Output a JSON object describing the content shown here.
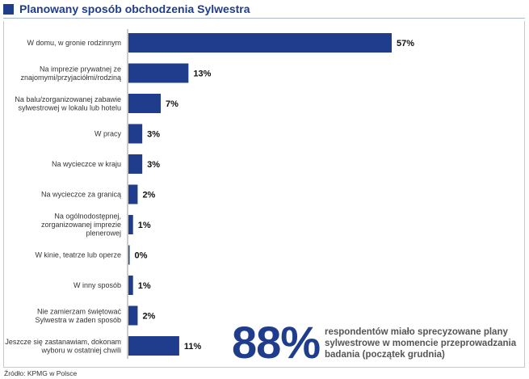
{
  "title": "Planowany sposób obchodzenia Sylwestra",
  "colors": {
    "bar": "#1f3d8c",
    "title": "#1f3d8c",
    "accent_text": "#555555"
  },
  "highlight": {
    "value": "88%",
    "text": "respondentów miało sprecyzowane plany sylwestrowe w momencie przeprowadzania badania (początek grudnia)"
  },
  "source": "Źródło: KPMG w Polsce",
  "chart_data": {
    "type": "bar",
    "orientation": "horizontal",
    "title": "Planowany sposób obchodzenia Sylwestra",
    "categories": [
      [
        "W domu, w gronie rodzinnym"
      ],
      [
        "Na imprezie prywatnej ze",
        "znajomymi/przyjaciółmi/rodziną"
      ],
      [
        "Na balu/zorganizowanej zabawie",
        "sylwestrowej w lokalu lub hotelu"
      ],
      [
        "W pracy"
      ],
      [
        "Na wycieczce w kraju"
      ],
      [
        "Na wycieczce za granicą"
      ],
      [
        "Na ogólnodostępnej,",
        "zorganizowanej imprezie",
        "plenerowej"
      ],
      [
        "W kinie, teatrze lub operze"
      ],
      [
        "W inny sposób"
      ],
      [
        "Nie zamierzam świętować",
        "Sylwestra w żaden sposób"
      ],
      [
        "Jeszcze się zastanawiam, dokonam",
        "wyboru w ostatniej chwili"
      ]
    ],
    "values": [
      57,
      13,
      7,
      3,
      3,
      2,
      1,
      0,
      1,
      2,
      11
    ],
    "value_labels": [
      "57%",
      "13%",
      "7%",
      "3%",
      "3%",
      "2%",
      "1%",
      "0%",
      "1%",
      "2%",
      "11%"
    ],
    "unit": "%",
    "xlim": [
      0,
      57
    ],
    "grid": false,
    "legend": "none"
  }
}
